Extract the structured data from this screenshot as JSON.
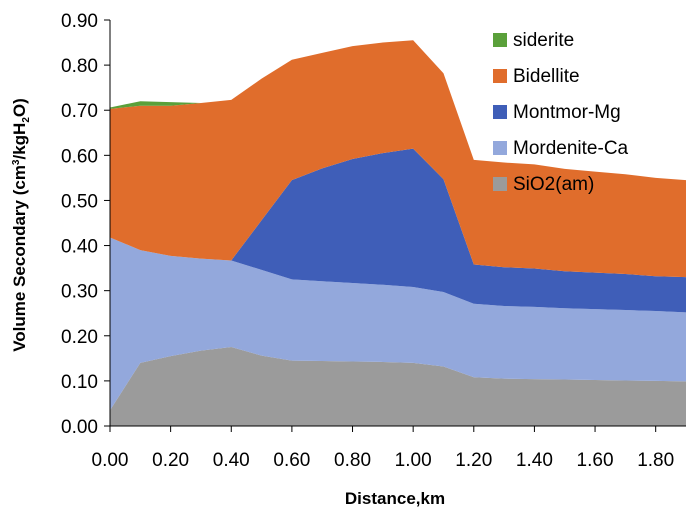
{
  "chart_data": {
    "type": "area",
    "stacked": true,
    "xlabel": "Distance,km",
    "ylabel_parts": [
      "Volume  Secondary (cm",
      "3",
      "/kgH",
      "2",
      "O)"
    ],
    "xlim": [
      0,
      1.9
    ],
    "ylim": [
      0,
      0.9
    ],
    "x_ticks": [
      "0.00",
      "0.20",
      "0.40",
      "0.60",
      "0.80",
      "1.00",
      "1.20",
      "1.40",
      "1.60",
      "1.80"
    ],
    "y_ticks": [
      "0.00",
      "0.10",
      "0.20",
      "0.30",
      "0.40",
      "0.50",
      "0.60",
      "0.70",
      "0.80",
      "0.90"
    ],
    "grid": false,
    "legend_position": "top-right",
    "x": [
      0.0,
      0.1,
      0.2,
      0.3,
      0.4,
      0.5,
      0.6,
      0.7,
      0.8,
      0.9,
      1.0,
      1.1,
      1.2,
      1.3,
      1.4,
      1.5,
      1.6,
      1.7,
      1.8,
      1.9
    ],
    "series": [
      {
        "name": "SiO2(am)",
        "color": "#9b9b9b",
        "values": [
          0.035,
          0.14,
          0.155,
          0.167,
          0.175,
          0.156,
          0.145,
          0.144,
          0.143,
          0.142,
          0.14,
          0.132,
          0.108,
          0.105,
          0.104,
          0.103,
          0.102,
          0.101,
          0.1,
          0.099
        ]
      },
      {
        "name": "Mordenite-Ca",
        "color": "#93a8dc",
        "values": [
          0.383,
          0.25,
          0.222,
          0.204,
          0.192,
          0.19,
          0.18,
          0.177,
          0.174,
          0.171,
          0.168,
          0.165,
          0.163,
          0.161,
          0.16,
          0.158,
          0.157,
          0.156,
          0.155,
          0.153
        ]
      },
      {
        "name": "Montmor-Mg",
        "color": "#3f5eb8",
        "values": [
          0.0,
          0.0,
          0.0,
          0.0,
          0.0,
          0.11,
          0.22,
          0.25,
          0.275,
          0.292,
          0.307,
          0.25,
          0.087,
          0.086,
          0.085,
          0.082,
          0.081,
          0.08,
          0.077,
          0.078
        ]
      },
      {
        "name": "Bidellite",
        "color": "#e06d2c",
        "values": [
          0.285,
          0.32,
          0.333,
          0.345,
          0.356,
          0.314,
          0.267,
          0.256,
          0.25,
          0.245,
          0.24,
          0.235,
          0.232,
          0.232,
          0.231,
          0.227,
          0.224,
          0.221,
          0.218,
          0.215
        ]
      },
      {
        "name": "siderite",
        "color": "#5aa03a",
        "values": [
          0.003,
          0.01,
          0.008,
          0.0,
          0.0,
          0.0,
          0.0,
          0.0,
          0.0,
          0.0,
          0.0,
          0.0,
          0.0,
          0.0,
          0.0,
          0.0,
          0.0,
          0.0,
          0.0,
          0.0
        ]
      }
    ],
    "legend": [
      "siderite",
      "Bidellite",
      "Montmor-Mg",
      "Mordenite-Ca",
      "SiO2(am)"
    ]
  }
}
